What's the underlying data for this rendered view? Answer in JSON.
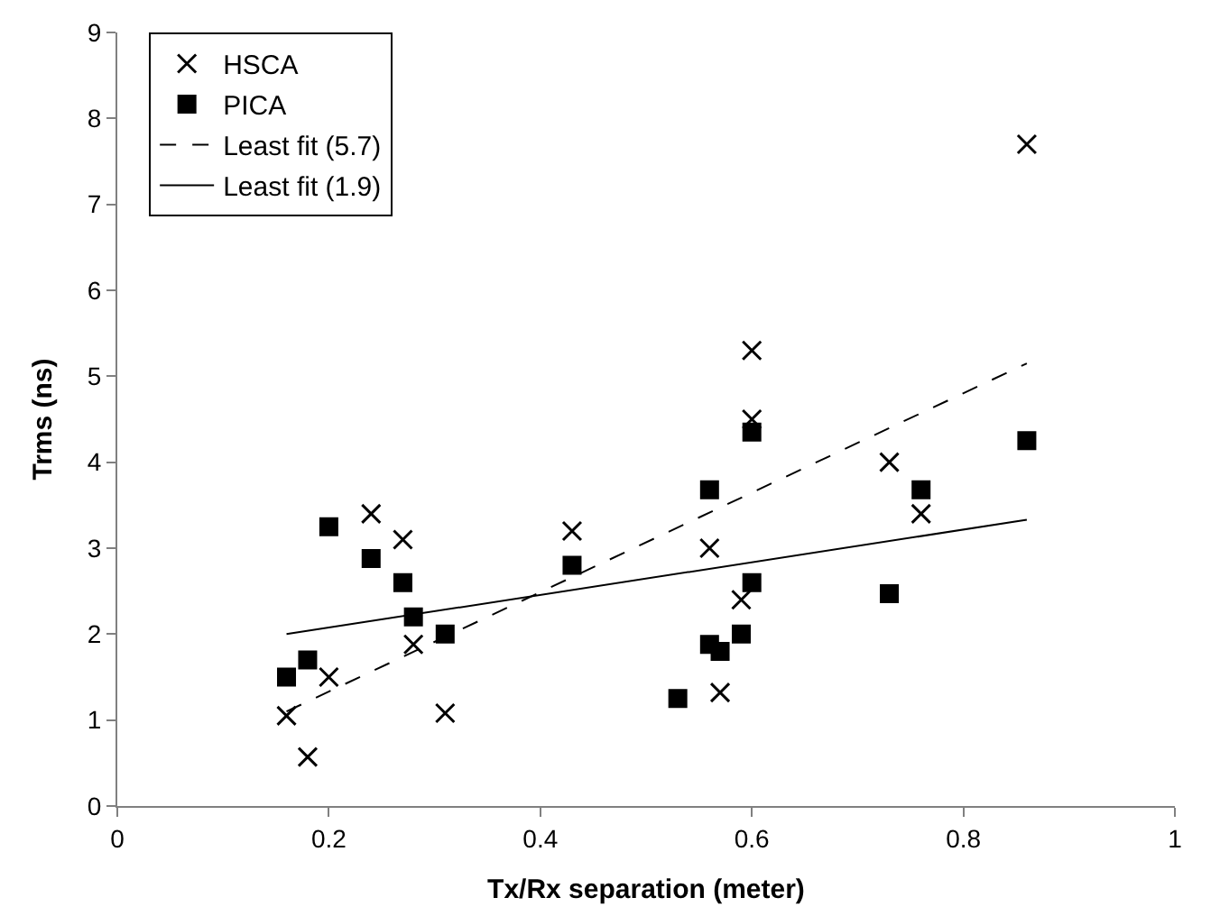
{
  "chart_data": {
    "type": "scatter",
    "xlabel": "Tx/Rx separation (meter)",
    "ylabel": "Trms (ns)",
    "xlim": [
      0,
      1
    ],
    "xticks": [
      0,
      0.2,
      0.4,
      0.6,
      0.8,
      1
    ],
    "ylim": [
      0,
      9
    ],
    "yticks": [
      0,
      1,
      2,
      3,
      4,
      5,
      6,
      7,
      8,
      9
    ],
    "legend": "top left",
    "series": [
      {
        "name": "HSCA",
        "color": "#000000",
        "marker": "cross",
        "x": [
          0.16,
          0.18,
          0.2,
          0.24,
          0.27,
          0.28,
          0.31,
          0.43,
          0.56,
          0.57,
          0.59,
          0.6,
          0.6,
          0.73,
          0.76,
          0.86
        ],
        "values": [
          1.05,
          0.57,
          1.5,
          3.4,
          3.1,
          1.88,
          1.08,
          3.2,
          3.0,
          1.32,
          2.4,
          5.3,
          4.5,
          4.0,
          3.4,
          7.7
        ]
      },
      {
        "name": "PICA",
        "color": "#000000",
        "marker": "square",
        "x": [
          0.16,
          0.18,
          0.2,
          0.24,
          0.27,
          0.28,
          0.31,
          0.43,
          0.53,
          0.56,
          0.56,
          0.57,
          0.59,
          0.6,
          0.6,
          0.73,
          0.76,
          0.86
        ],
        "values": [
          1.5,
          1.7,
          3.25,
          2.88,
          2.6,
          2.2,
          2.0,
          2.8,
          1.25,
          3.68,
          1.88,
          1.8,
          2.0,
          4.35,
          2.6,
          2.47,
          3.68,
          4.25
        ]
      },
      {
        "name": "Least fit (5.7)",
        "type": "line",
        "color": "#000000",
        "line_style": "dashed",
        "x": [
          0.16,
          0.86
        ],
        "values": [
          1.1,
          5.15
        ]
      },
      {
        "name": "Least fit (1.9)",
        "type": "line",
        "color": "#000000",
        "line_style": "solid",
        "x": [
          0.16,
          0.86
        ],
        "values": [
          2.0,
          3.33
        ]
      }
    ]
  }
}
